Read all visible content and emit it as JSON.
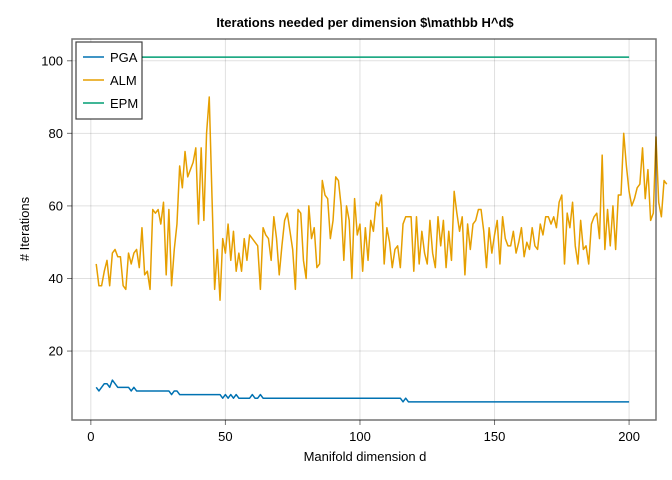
{
  "chart_data": {
    "type": "line",
    "title": "Iterations needed per dimension $\\mathbb H^d$",
    "xlabel": "Manifold dimension d",
    "ylabel": "# Iterations",
    "xlim": [
      -7,
      210
    ],
    "ylim": [
      1,
      106
    ],
    "xticks": [
      0,
      50,
      100,
      150,
      200
    ],
    "xtick_labels": [
      "0",
      "50",
      "100",
      "150",
      "200"
    ],
    "yticks": [
      20,
      40,
      60,
      80,
      100
    ],
    "ytick_labels": [
      "20",
      "40",
      "60",
      "80",
      "100"
    ],
    "grid": true,
    "legend_position": "top-left",
    "x_start": 2,
    "x_end": 200,
    "series": [
      {
        "name": "PGA",
        "color": "#0072B2",
        "values": [
          10,
          9,
          10,
          11,
          11,
          10,
          12,
          11,
          10,
          10,
          10,
          10,
          10,
          9,
          10,
          9,
          9,
          9,
          9,
          9,
          9,
          9,
          9,
          9,
          9,
          9,
          9,
          9,
          8,
          9,
          9,
          8,
          8,
          8,
          8,
          8,
          8,
          8,
          8,
          8,
          8,
          8,
          8,
          8,
          8,
          8,
          8,
          7,
          8,
          7,
          8,
          7,
          8,
          7,
          7,
          7,
          7,
          7,
          8,
          7,
          7,
          8,
          7,
          7,
          7,
          7,
          7,
          7,
          7,
          7,
          7,
          7,
          7,
          7,
          7,
          7,
          7,
          7,
          7,
          7,
          7,
          7,
          7,
          7,
          7,
          7,
          7,
          7,
          7,
          7,
          7,
          7,
          7,
          7,
          7,
          7,
          7,
          7,
          7,
          7,
          7,
          7,
          7,
          7,
          7,
          7,
          7,
          7,
          7,
          7,
          7,
          7,
          7,
          7,
          6,
          7,
          6,
          6,
          6,
          6,
          6,
          6,
          6,
          6,
          6,
          6,
          6,
          6,
          6,
          6,
          6,
          6,
          6,
          6,
          6,
          6,
          6,
          6,
          6,
          6,
          6,
          6,
          6,
          6,
          6,
          6,
          6,
          6,
          6,
          6,
          6,
          6,
          6,
          6,
          6,
          6,
          6,
          6,
          6,
          6,
          6,
          6,
          6,
          6,
          6,
          6,
          6,
          6,
          6,
          6,
          6,
          6,
          6,
          6,
          6,
          6,
          6,
          6,
          6,
          6,
          6,
          6,
          6,
          6,
          6,
          6,
          6,
          6,
          6,
          6,
          6,
          6,
          6,
          6,
          6,
          6,
          6,
          6,
          6
        ]
      },
      {
        "name": "ALM",
        "color": "#E69F00",
        "values": [
          44,
          38,
          38,
          42,
          45,
          38,
          47,
          48,
          46,
          46,
          38,
          37,
          47,
          44,
          47,
          48,
          43,
          54,
          41,
          42,
          37,
          59,
          58,
          59,
          55,
          61,
          41,
          59,
          38,
          48,
          55,
          71,
          65,
          75,
          68,
          70,
          72,
          76,
          55,
          76,
          56,
          80,
          90,
          63,
          37,
          48,
          34,
          51,
          47,
          55,
          45,
          53,
          42,
          47,
          42,
          51,
          45,
          52,
          51,
          50,
          49,
          37,
          54,
          52,
          51,
          45,
          57,
          51,
          41,
          49,
          56,
          58,
          53,
          48,
          37,
          59,
          58,
          45,
          40,
          60,
          51,
          54,
          43,
          44,
          67,
          63,
          62,
          51,
          56,
          68,
          67,
          60,
          45,
          60,
          56,
          40,
          62,
          52,
          55,
          42,
          54,
          45,
          56,
          53,
          61,
          60,
          63,
          44,
          54,
          50,
          43,
          48,
          49,
          43,
          55,
          57,
          57,
          57,
          42,
          57,
          44,
          53,
          47,
          44,
          56,
          47,
          43,
          57,
          49,
          56,
          43,
          53,
          45,
          64,
          58,
          53,
          57,
          41,
          55,
          48,
          55,
          56,
          59,
          59,
          53,
          43,
          54,
          47,
          52,
          56,
          44,
          57,
          51,
          49,
          49,
          53,
          47,
          50,
          54,
          46,
          50,
          48,
          54,
          49,
          48,
          55,
          52,
          57,
          57,
          55,
          57,
          54,
          61,
          63,
          44,
          58,
          54,
          61,
          49,
          44,
          56,
          48,
          49,
          44,
          55,
          57,
          58,
          51,
          74,
          48,
          59,
          49,
          60,
          48,
          63,
          63,
          80,
          71,
          64,
          60,
          62,
          65,
          66,
          76,
          62,
          70,
          56,
          58,
          79,
          61,
          57,
          67,
          66
        ]
      },
      {
        "name": "EPM",
        "color": "#009E73",
        "values": [
          101
        ]
      }
    ]
  }
}
